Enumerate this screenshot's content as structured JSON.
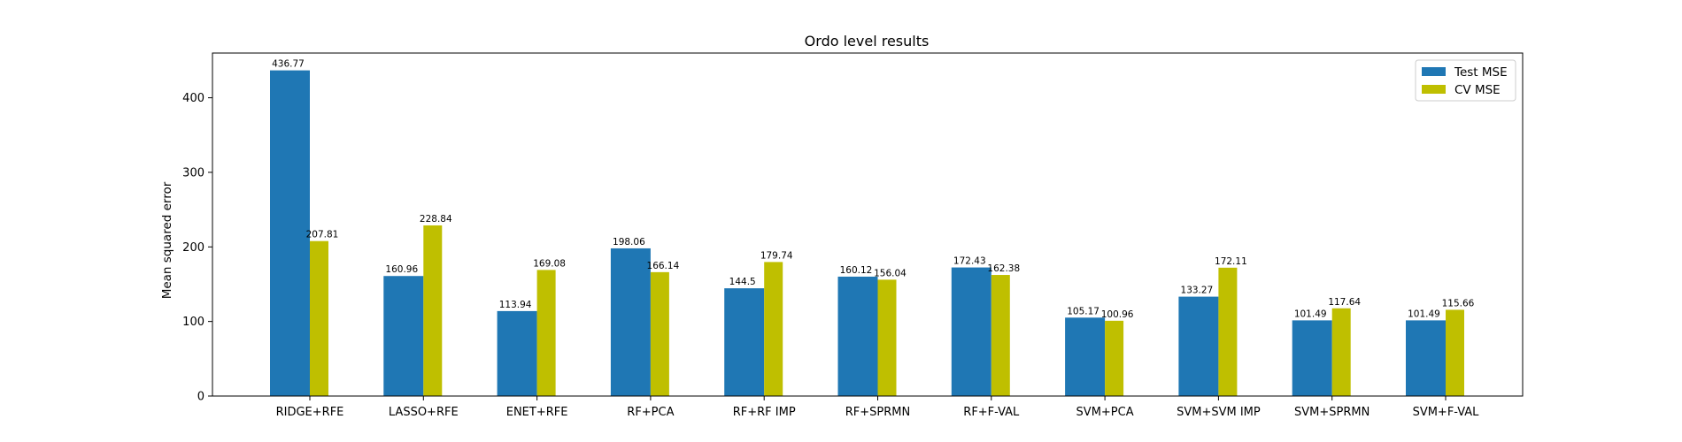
{
  "chart_data": {
    "type": "bar",
    "title": "Ordo level results",
    "xlabel": "",
    "ylabel": "Mean squared error",
    "ylim": [
      0,
      460
    ],
    "yticks": [
      0,
      100,
      200,
      300,
      400
    ],
    "grid": false,
    "legend_position": "top-right",
    "categories": [
      "RIDGE+RFE",
      "LASSO+RFE",
      "ENET+RFE",
      "RF+PCA",
      "RF+RF IMP",
      "RF+SPRMN",
      "RF+F-VAL",
      "SVM+PCA",
      "SVM+SVM IMP",
      "SVM+SPRMN",
      "SVM+F-VAL"
    ],
    "series": [
      {
        "name": "Test MSE",
        "color": "#1f77b4",
        "values": [
          436.77,
          160.96,
          113.94,
          198.06,
          144.5,
          160.12,
          172.43,
          105.17,
          133.27,
          101.49,
          101.49
        ],
        "labels": [
          "436.77",
          "160.96",
          "113.94",
          "198.06",
          "144.5",
          "160.12",
          "172.43",
          "105.17",
          "133.27",
          "101.49",
          "101.49"
        ]
      },
      {
        "name": "CV MSE",
        "color": "#bfbf00",
        "values": [
          207.81,
          228.84,
          169.08,
          166.14,
          179.74,
          156.04,
          162.38,
          100.96,
          172.11,
          117.64,
          115.66
        ],
        "labels": [
          "207.81",
          "228.84",
          "169.08",
          "166.14",
          "179.74",
          "156.04",
          "162.38",
          "100.96",
          "172.11",
          "117.64",
          "115.66"
        ]
      }
    ]
  }
}
